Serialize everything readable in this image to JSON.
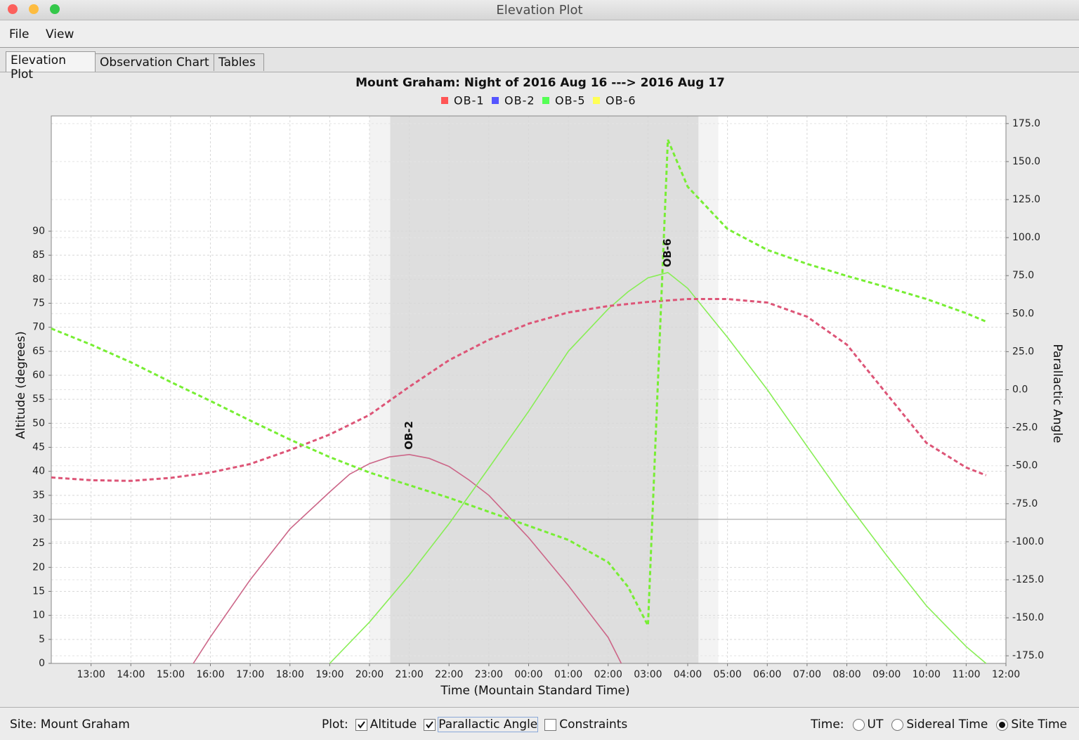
{
  "window": {
    "title": "Elevation Plot"
  },
  "menu": [
    "File",
    "View"
  ],
  "tabs": [
    {
      "label": "Elevation Plot",
      "selected": true
    },
    {
      "label": "Observation Chart",
      "selected": false
    },
    {
      "label": "Tables",
      "selected": false
    }
  ],
  "chart_data": {
    "type": "line",
    "title": "Mount Graham: Night of 2016 Aug 16 ---> 2016 Aug 17",
    "legend": [
      {
        "name": "OB-1",
        "color": "#ff5555"
      },
      {
        "name": "OB-2",
        "color": "#5555ff"
      },
      {
        "name": "OB-5",
        "color": "#55ff55"
      },
      {
        "name": "OB-6",
        "color": "#ffff55"
      }
    ],
    "xlabel": "Time (Mountain Standard Time)",
    "ylabel": "Altitude (degrees)",
    "y2label": "Parallactic Angle",
    "xlim": [
      12,
      36
    ],
    "xticks": [
      {
        "value": 13,
        "label": "13:00"
      },
      {
        "value": 14,
        "label": "14:00"
      },
      {
        "value": 15,
        "label": "15:00"
      },
      {
        "value": 16,
        "label": "16:00"
      },
      {
        "value": 17,
        "label": "17:00"
      },
      {
        "value": 18,
        "label": "18:00"
      },
      {
        "value": 19,
        "label": "19:00"
      },
      {
        "value": 20,
        "label": "20:00"
      },
      {
        "value": 21,
        "label": "21:00"
      },
      {
        "value": 22,
        "label": "22:00"
      },
      {
        "value": 23,
        "label": "23:00"
      },
      {
        "value": 24,
        "label": "00:00"
      },
      {
        "value": 25,
        "label": "01:00"
      },
      {
        "value": 26,
        "label": "02:00"
      },
      {
        "value": 27,
        "label": "03:00"
      },
      {
        "value": 28,
        "label": "04:00"
      },
      {
        "value": 29,
        "label": "05:00"
      },
      {
        "value": 30,
        "label": "06:00"
      },
      {
        "value": 31,
        "label": "07:00"
      },
      {
        "value": 32,
        "label": "08:00"
      },
      {
        "value": 33,
        "label": "09:00"
      },
      {
        "value": 34,
        "label": "10:00"
      },
      {
        "value": 35,
        "label": "11:00"
      },
      {
        "value": 36,
        "label": "12:00"
      }
    ],
    "ylim": [
      0,
      114
    ],
    "yticks": [
      0,
      5,
      10,
      15,
      20,
      25,
      30,
      35,
      40,
      45,
      50,
      55,
      60,
      65,
      70,
      75,
      80,
      85,
      90
    ],
    "y2lim": [
      -180,
      180
    ],
    "y2ticks": [
      {
        "value": 175,
        "label": "175.0"
      },
      {
        "value": 150,
        "label": "150.0"
      },
      {
        "value": 125,
        "label": "125.0"
      },
      {
        "value": 100,
        "label": "100.0"
      },
      {
        "value": 75,
        "label": "75.0"
      },
      {
        "value": 50,
        "label": "50.0"
      },
      {
        "value": 25,
        "label": "25.0"
      },
      {
        "value": 0,
        "label": "0.0"
      },
      {
        "value": -25,
        "label": "-25.0"
      },
      {
        "value": -50,
        "label": "-50.0"
      },
      {
        "value": -75,
        "label": "-75.0"
      },
      {
        "value": -100,
        "label": "-100.0"
      },
      {
        "value": -125,
        "label": "-125.0"
      },
      {
        "value": -150,
        "label": "-150.0"
      },
      {
        "value": -175,
        "label": "-175.0"
      }
    ],
    "grid": true,
    "shaded_regions": [
      {
        "start": 20.0,
        "end": 28.77,
        "color": "#f3f3f3"
      },
      {
        "start": 20.52,
        "end": 28.27,
        "color": "#dedede"
      }
    ],
    "reference_line": 30,
    "series": [
      {
        "color": "#cc6688",
        "line_style": "solid",
        "axis": "y",
        "x": [
          15.57,
          16,
          17,
          18,
          19,
          19.5,
          20,
          20.5,
          21,
          21.5,
          22,
          22.5,
          23,
          24,
          25,
          26,
          26.33
        ],
        "values": [
          0,
          5.5,
          17.4,
          28,
          35.7,
          39.4,
          41.6,
          43,
          43.5,
          42.7,
          41,
          38.2,
          35,
          26.2,
          16.2,
          5.4,
          0
        ]
      },
      {
        "color": "#88ee55",
        "line_style": "solid",
        "axis": "y",
        "x": [
          19,
          20,
          21,
          22,
          23,
          24,
          25,
          26,
          26.5,
          27,
          27.5,
          28,
          29,
          30,
          31,
          32,
          33,
          34,
          35,
          35.5
        ],
        "values": [
          0,
          8.6,
          18.4,
          29.1,
          40.7,
          52.5,
          65,
          73.8,
          77.4,
          80.3,
          81.4,
          78.1,
          67.9,
          57,
          45.2,
          33.5,
          22.5,
          12,
          3.5,
          0
        ]
      },
      {
        "color": "#dd5577",
        "line_style": "dashed",
        "axis": "y2",
        "x": [
          12,
          13,
          14,
          15,
          16,
          17,
          18,
          19,
          20,
          21,
          22,
          23,
          24,
          25,
          26,
          27,
          28,
          29,
          30,
          31,
          32,
          33,
          34,
          35,
          35.5
        ],
        "values": [
          -57.7,
          -59.5,
          -60,
          -58,
          -54.5,
          -48.9,
          -39.7,
          -29.5,
          -16.6,
          1.9,
          19.4,
          32.8,
          43.4,
          50.8,
          55,
          57.7,
          59.6,
          59.6,
          57.3,
          48,
          29.6,
          -2.7,
          -35,
          -51.2,
          -56.3
        ]
      },
      {
        "color": "#77ee33",
        "line_style": "dashed",
        "axis": "y2",
        "x": [
          12,
          13,
          14,
          15,
          16,
          17,
          18,
          19,
          20,
          21,
          22,
          23,
          24,
          25,
          26,
          26.5,
          27,
          27.5,
          28,
          29,
          30,
          31,
          32,
          33,
          34,
          35,
          35.5
        ],
        "values": [
          40.2,
          29.6,
          18,
          5.1,
          -7.4,
          -20.3,
          -32.8,
          -44.3,
          -54.5,
          -62.8,
          -71.1,
          -80.3,
          -89.5,
          -98.8,
          -113.5,
          -129.7,
          -155.1,
          164.4,
          133.4,
          105.7,
          91.9,
          82.7,
          74.8,
          67.4,
          59.6,
          50.3,
          44.8
        ]
      }
    ],
    "annotations": [
      {
        "text": "OB-2",
        "x": 21,
        "y": 44.5
      },
      {
        "text": "OB-6",
        "x": 27.5,
        "y": 82.5
      }
    ]
  },
  "status_bar": {
    "site": "Site: Mount Graham",
    "plot_label": "Plot:",
    "plot_options": [
      {
        "label": "Altitude",
        "checked": true
      },
      {
        "label": "Parallactic Angle",
        "checked": true
      },
      {
        "label": "Constraints",
        "checked": false
      }
    ],
    "time_label": "Time:",
    "time_options": [
      {
        "label": "UT",
        "selected": false
      },
      {
        "label": "Sidereal Time",
        "selected": false
      },
      {
        "label": "Site Time",
        "selected": true
      }
    ]
  }
}
